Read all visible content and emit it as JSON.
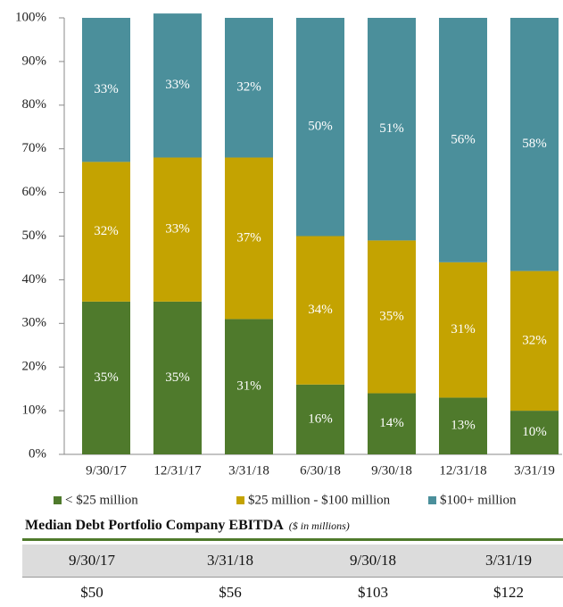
{
  "chart_data": {
    "type": "stacked_bar",
    "categories": [
      "9/30/17",
      "12/31/17",
      "3/31/18",
      "6/30/18",
      "9/30/18",
      "12/31/18",
      "3/31/19"
    ],
    "series": [
      {
        "name": "< $25 million",
        "color": "#4f7a2c",
        "values": [
          35,
          35,
          31,
          16,
          14,
          13,
          10
        ],
        "value_labels": [
          "35%",
          "35%",
          "31%",
          "16%",
          "14%",
          "13%",
          "10%"
        ]
      },
      {
        "name": "$25 million - $100 million",
        "color": "#c4a301",
        "values": [
          32,
          33,
          37,
          34,
          35,
          31,
          32
        ],
        "value_labels": [
          "32%",
          "33%",
          "37%",
          "34%",
          "35%",
          "31%",
          "32%"
        ]
      },
      {
        "name": "$100+ million",
        "color": "#4b8f9b",
        "values": [
          33,
          33,
          32,
          50,
          51,
          56,
          58
        ],
        "value_labels": [
          "33%",
          "33%",
          "32%",
          "50%",
          "51%",
          "56%",
          "58%"
        ]
      }
    ],
    "ylim": [
      0,
      100
    ],
    "yticks": [
      {
        "value": 0,
        "label": "0%"
      },
      {
        "value": 10,
        "label": "10%"
      },
      {
        "value": 20,
        "label": "20%"
      },
      {
        "value": 30,
        "label": "30%"
      },
      {
        "value": 40,
        "label": "40%"
      },
      {
        "value": 50,
        "label": "50%"
      },
      {
        "value": 60,
        "label": "60%"
      },
      {
        "value": 70,
        "label": "70%"
      },
      {
        "value": 80,
        "label": "80%"
      },
      {
        "value": 90,
        "label": "90%"
      },
      {
        "value": 100,
        "label": "100%"
      }
    ],
    "grid": false,
    "legend": "bottom"
  },
  "table": {
    "title": "Median Debt Portfolio Company EBITDA",
    "subtitle": "($ in millions)",
    "header": [
      "9/30/17",
      "3/31/18",
      "9/30/18",
      "3/31/19"
    ],
    "rows": [
      [
        "$50",
        "$56",
        "$103",
        "$122"
      ]
    ]
  }
}
